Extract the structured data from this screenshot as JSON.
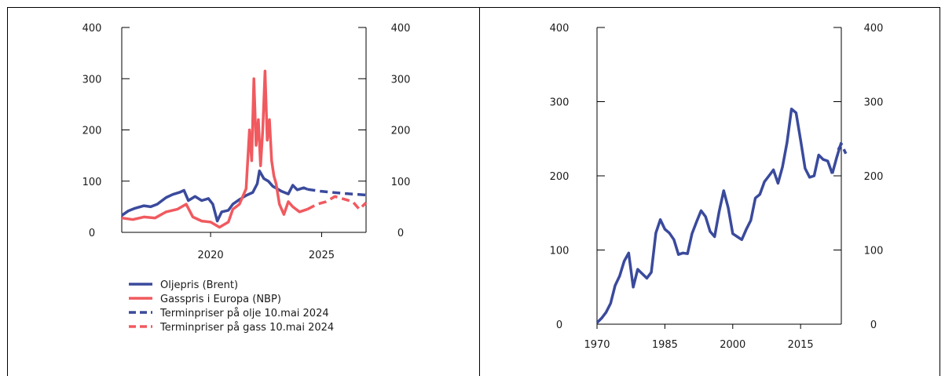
{
  "chart_data": [
    {
      "type": "line",
      "x_ticks": [
        "2020",
        "2025"
      ],
      "y_left_ticks": [
        "0",
        "100",
        "200",
        "300",
        "400"
      ],
      "y_right_ticks": [
        "0",
        "100",
        "200",
        "300",
        "400"
      ],
      "ylim": [
        0,
        400
      ],
      "xlim": [
        2016.0,
        2027.0
      ],
      "legend_position": "bottom-left",
      "colors": {
        "oil": "#3a4a9c",
        "gas": "#f05a5f"
      },
      "legend": [
        {
          "label": "Oljepris (Brent)",
          "style": "solid",
          "color": "#3a4a9c"
        },
        {
          "label": "Gasspris i Europa (NBP)",
          "style": "solid",
          "color": "#f05a5f"
        },
        {
          "label": "Terminpriser på olje 10.mai 2024",
          "style": "dashed",
          "color": "#3a4a9c"
        },
        {
          "label": "Terminpriser på gass 10.mai 2024",
          "style": "dashed",
          "color": "#f05a5f"
        }
      ],
      "series": [
        {
          "name": "Oljepris (Brent)",
          "style": "solid",
          "color": "#3a4a9c",
          "x": [
            2016.0,
            2016.3,
            2016.6,
            2017.0,
            2017.3,
            2017.6,
            2018.0,
            2018.3,
            2018.6,
            2018.8,
            2019.0,
            2019.3,
            2019.6,
            2019.9,
            2020.1,
            2020.3,
            2020.5,
            2020.8,
            2021.0,
            2021.3,
            2021.6,
            2021.9,
            2022.1,
            2022.2,
            2022.4,
            2022.6,
            2022.8,
            2023.0,
            2023.2,
            2023.5,
            2023.7,
            2023.9,
            2024.2,
            2024.36
          ],
          "y": [
            33,
            42,
            47,
            52,
            50,
            55,
            68,
            74,
            78,
            82,
            62,
            70,
            62,
            66,
            55,
            22,
            40,
            43,
            55,
            64,
            72,
            78,
            95,
            120,
            105,
            100,
            90,
            85,
            80,
            75,
            92,
            83,
            87,
            84
          ]
        },
        {
          "name": "Gasspris i Europa (NBP)",
          "style": "solid",
          "color": "#f05a5f",
          "x": [
            2016.0,
            2016.5,
            2017.0,
            2017.5,
            2018.0,
            2018.5,
            2018.9,
            2019.2,
            2019.6,
            2020.0,
            2020.4,
            2020.8,
            2021.0,
            2021.3,
            2021.6,
            2021.75,
            2021.85,
            2021.95,
            2022.05,
            2022.15,
            2022.25,
            2022.35,
            2022.45,
            2022.55,
            2022.65,
            2022.75,
            2022.85,
            2022.95,
            2023.1,
            2023.3,
            2023.5,
            2023.7,
            2024.0,
            2024.36
          ],
          "y": [
            28,
            25,
            30,
            28,
            40,
            45,
            55,
            30,
            22,
            20,
            10,
            20,
            45,
            55,
            85,
            200,
            140,
            300,
            170,
            220,
            130,
            200,
            315,
            180,
            220,
            140,
            110,
            95,
            55,
            35,
            60,
            50,
            40,
            45
          ]
        },
        {
          "name": "Terminpriser på olje 10.mai 2024",
          "style": "dashed",
          "color": "#3a4a9c",
          "x": [
            2024.36,
            2025.0,
            2026.0,
            2027.0
          ],
          "y": [
            84,
            80,
            76,
            73
          ]
        },
        {
          "name": "Terminpriser på gass 10.mai 2024",
          "style": "dashed",
          "color": "#f05a5f",
          "x": [
            2024.36,
            2024.8,
            2025.2,
            2025.6,
            2026.0,
            2026.4,
            2026.7,
            2027.0
          ],
          "y": [
            45,
            55,
            60,
            70,
            65,
            60,
            45,
            58
          ]
        }
      ]
    },
    {
      "type": "line",
      "x_ticks": [
        "1970",
        "1985",
        "2000",
        "2015"
      ],
      "y_left_ticks": [
        "0",
        "100",
        "200",
        "300",
        "400"
      ],
      "y_right_ticks": [
        "0",
        "100",
        "200",
        "300",
        "400"
      ],
      "ylim": [
        0,
        400
      ],
      "xlim": [
        1970,
        2024
      ],
      "colors": {
        "line": "#3a4a9c"
      },
      "series": [
        {
          "style": "solid",
          "color": "#3a4a9c",
          "x": [
            1970,
            1971,
            1972,
            1973,
            1974,
            1975,
            1976,
            1977,
            1978,
            1979,
            1980,
            1981,
            1982,
            1983,
            1984,
            1985,
            1986,
            1987,
            1988,
            1989,
            1990,
            1991,
            1992,
            1993,
            1994,
            1995,
            1996,
            1997,
            1998,
            1999,
            2000,
            2001,
            2002,
            2003,
            2004,
            2005,
            2006,
            2007,
            2008,
            2009,
            2010,
            2011,
            2012,
            2013,
            2014,
            2015,
            2016,
            2017,
            2018,
            2019,
            2020,
            2021,
            2022
          ],
          "y": [
            2,
            8,
            16,
            28,
            52,
            65,
            85,
            96,
            50,
            74,
            68,
            62,
            70,
            123,
            141,
            128,
            123,
            114,
            94,
            96,
            95,
            122,
            138,
            153,
            145,
            125,
            118,
            152,
            180,
            157,
            122,
            118,
            114,
            128,
            140,
            170,
            175,
            192,
            200,
            208,
            190,
            212,
            245,
            290,
            285,
            248,
            210,
            198,
            200,
            228,
            222,
            220,
            203
          ]
        },
        {
          "style": "solid",
          "color": "#3a4a9c",
          "x": [
            2022,
            2023,
            2024
          ],
          "y": [
            203,
            225,
            245
          ]
        },
        {
          "style": "dashed",
          "color": "#3a4a9c",
          "x": [
            2023.3,
            2024,
            2025
          ],
          "y": [
            235,
            243,
            230
          ]
        }
      ]
    }
  ]
}
